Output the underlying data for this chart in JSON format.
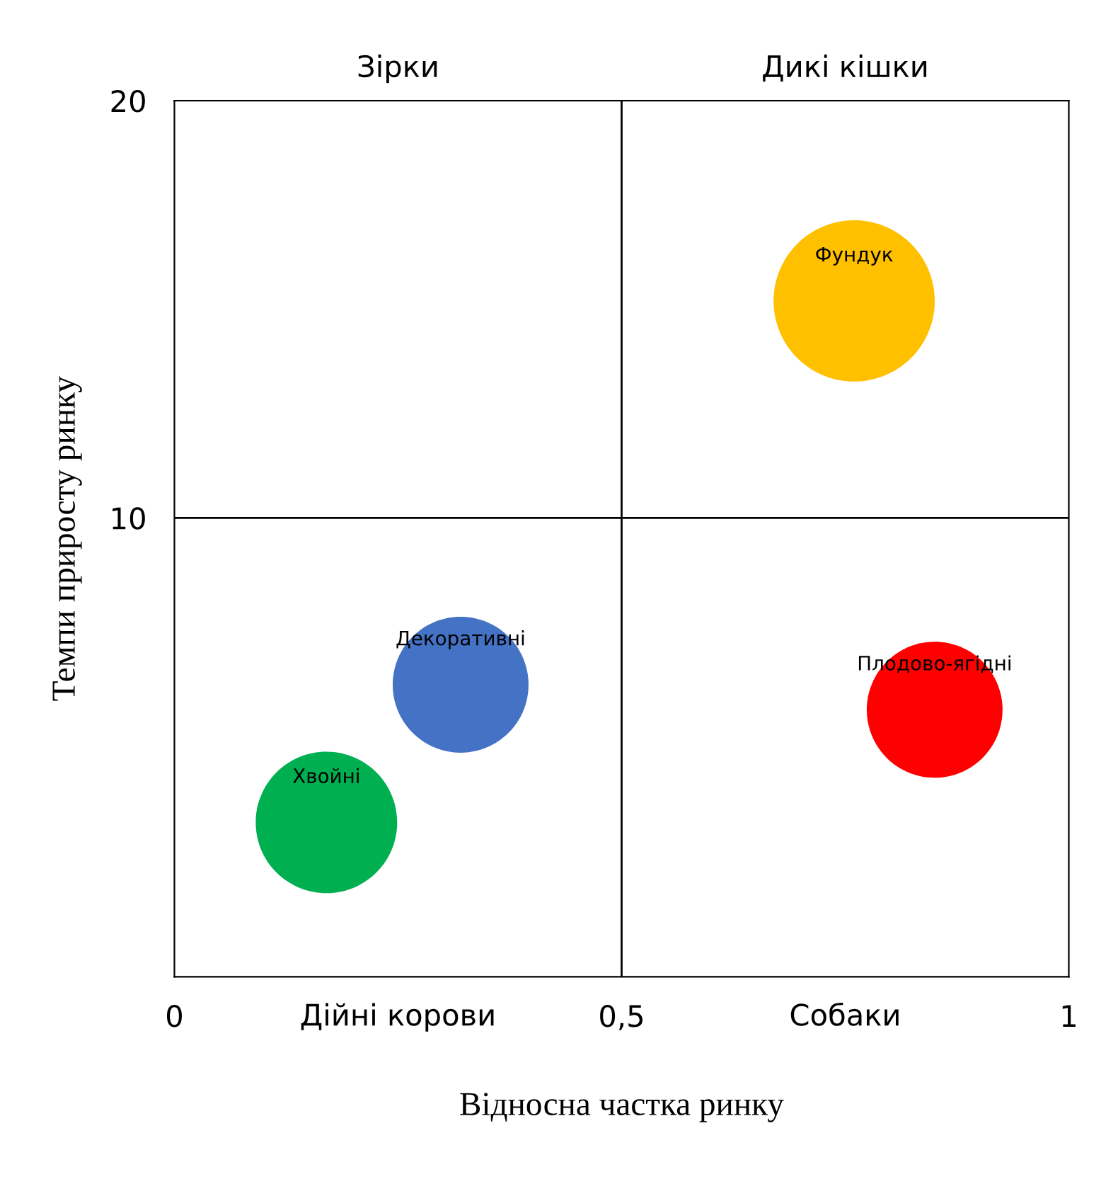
{
  "chart_data": {
    "type": "bubble",
    "xlabel": "Відносна частка ринку",
    "ylabel": "Темпи приросту ринку",
    "xlim": [
      0,
      1
    ],
    "ylim": [
      -1,
      20
    ],
    "xticks": [
      0,
      {
        "value": 0.5,
        "label": "0,5"
      },
      1
    ],
    "yticks": [
      10,
      20
    ],
    "grid": false,
    "legend": false,
    "series": [
      {
        "name": "Хвойні",
        "color": "#00b050",
        "x": [
          0.17
        ],
        "values": [
          2.7
        ],
        "sizes": [
          0.77
        ]
      },
      {
        "name": "Декоративні",
        "color": "#4472c4",
        "x": [
          0.32
        ],
        "values": [
          6.0
        ],
        "sizes": [
          0.71
        ]
      },
      {
        "name": "Фундук",
        "color": "#ffc000",
        "x": [
          0.76
        ],
        "values": [
          15.2
        ],
        "sizes": [
          1
        ]
      },
      {
        "name": "Плодово-ягідні",
        "color": "#ff0000",
        "x": [
          0.85
        ],
        "values": [
          5.4
        ],
        "sizes": [
          0.71
        ]
      }
    ],
    "ref_lines": [
      {
        "axis": "x",
        "value": 0.5,
        "color": "#000000"
      },
      {
        "axis": "y",
        "value": 10,
        "color": "#000000"
      }
    ],
    "annotations": [
      "Зірки",
      "Дикі кішки",
      "Дійні корови",
      "Собаки"
    ]
  }
}
